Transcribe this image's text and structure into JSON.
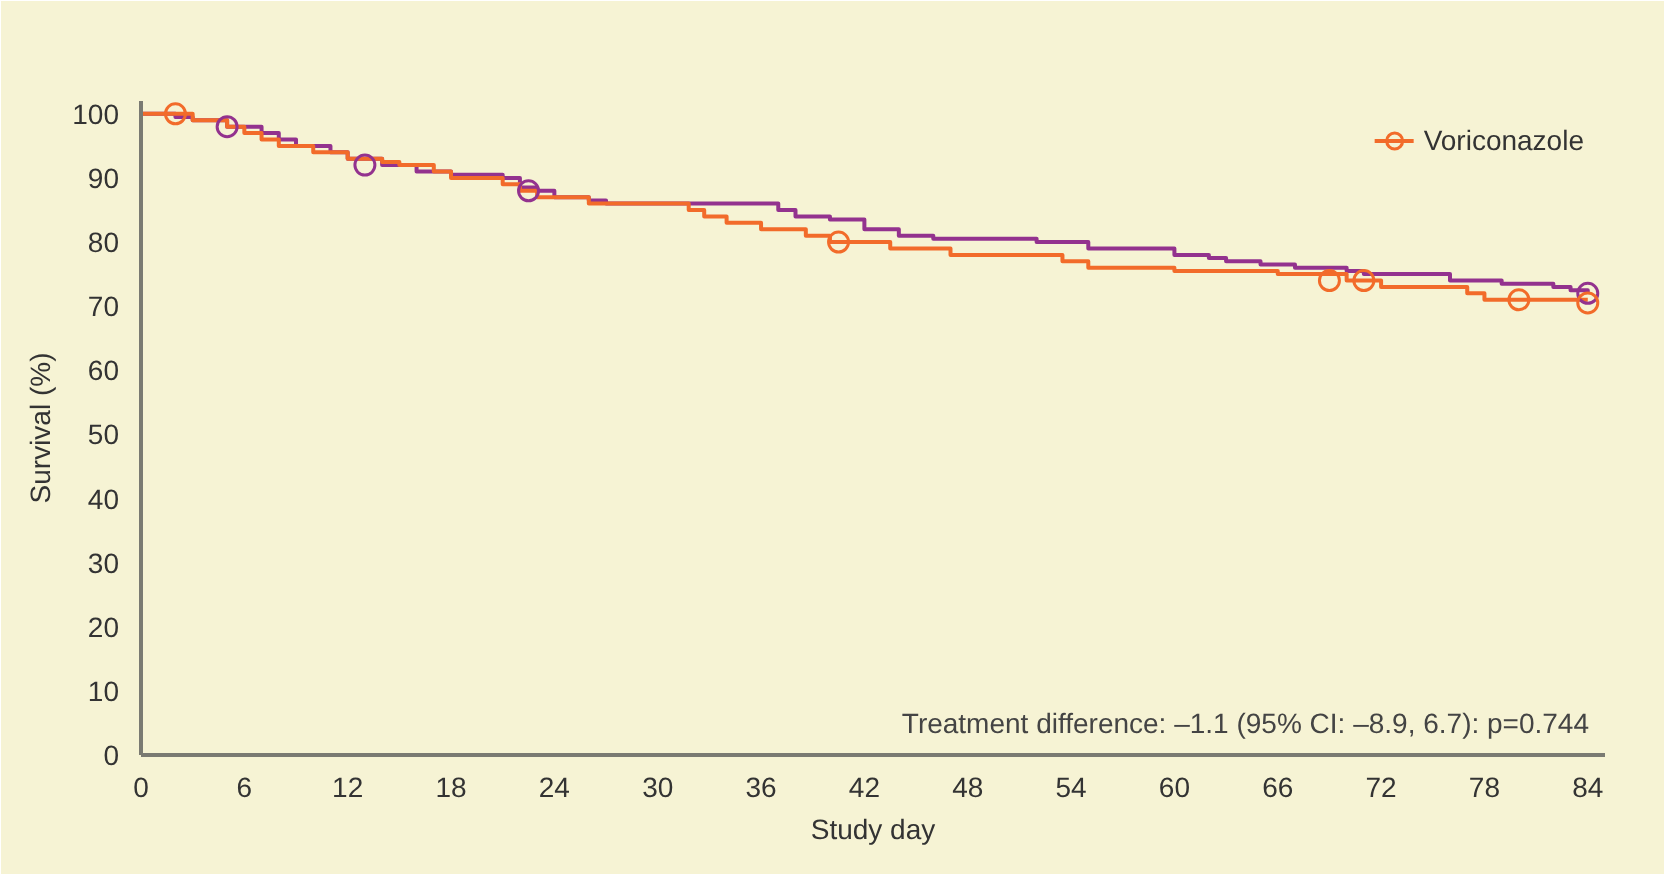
{
  "chart_data": {
    "type": "step",
    "xlabel": "Study day",
    "ylabel": "Survival (%)",
    "xlim": [
      0,
      85
    ],
    "ylim": [
      0,
      102
    ],
    "xticks": [
      0,
      6,
      12,
      18,
      24,
      30,
      36,
      42,
      48,
      54,
      60,
      66,
      72,
      78,
      84
    ],
    "yticks": [
      0,
      10,
      20,
      30,
      40,
      50,
      60,
      70,
      80,
      90,
      100
    ],
    "grid": false,
    "legend": "top right",
    "annotations": [
      "Treatment difference: –1.1 (95% CI: –8.9, 6.7): p=0.744"
    ],
    "series": [
      {
        "color": "#93328e",
        "x": [
          0,
          2,
          3,
          5,
          7,
          8,
          9,
          11,
          12,
          14,
          16,
          18,
          21,
          22,
          23,
          24,
          26,
          27,
          37,
          38,
          40,
          42,
          44,
          46,
          52,
          55,
          60,
          62,
          63,
          65,
          67,
          70,
          71,
          76,
          79,
          82,
          83,
          84
        ],
        "values": [
          100,
          99.5,
          99,
          98,
          97,
          96,
          95,
          94,
          93,
          92,
          91,
          90.5,
          90,
          88.5,
          88,
          87,
          86.5,
          86,
          85,
          84,
          83.5,
          82,
          81,
          80.5,
          80,
          79,
          78,
          77.5,
          77,
          76.5,
          76,
          75.5,
          75,
          74,
          73.5,
          73,
          72.5,
          72
        ]
      },
      {
        "name": "Voriconazole",
        "color": "#f26b2a",
        "x": [
          0,
          3,
          5,
          6,
          7,
          8,
          10,
          12,
          14,
          15,
          17,
          18,
          21,
          22,
          23,
          26,
          31.8,
          32.7,
          34,
          36,
          38.6,
          40,
          43.5,
          47,
          53.5,
          55,
          60,
          66,
          70,
          72,
          77,
          78,
          84
        ],
        "values": [
          100,
          99,
          98,
          97,
          96,
          95,
          94,
          93,
          92.5,
          92,
          91,
          90,
          89,
          88,
          87,
          86,
          85,
          84,
          83,
          82,
          81,
          80,
          79,
          78,
          77,
          76,
          75.5,
          75,
          74,
          73,
          72,
          71,
          71
        ]
      },
      {
        "type": "scatter",
        "marker": "circle",
        "color": "#93328e",
        "x": [
          5,
          13,
          22.5,
          84
        ],
        "values": [
          98,
          92,
          88,
          72
        ]
      },
      {
        "type": "scatter",
        "marker": "circle",
        "color": "#f26b2a",
        "x": [
          2,
          40.5,
          69,
          71,
          80,
          84
        ],
        "values": [
          100,
          80,
          74,
          74,
          71,
          70.5
        ]
      }
    ]
  }
}
